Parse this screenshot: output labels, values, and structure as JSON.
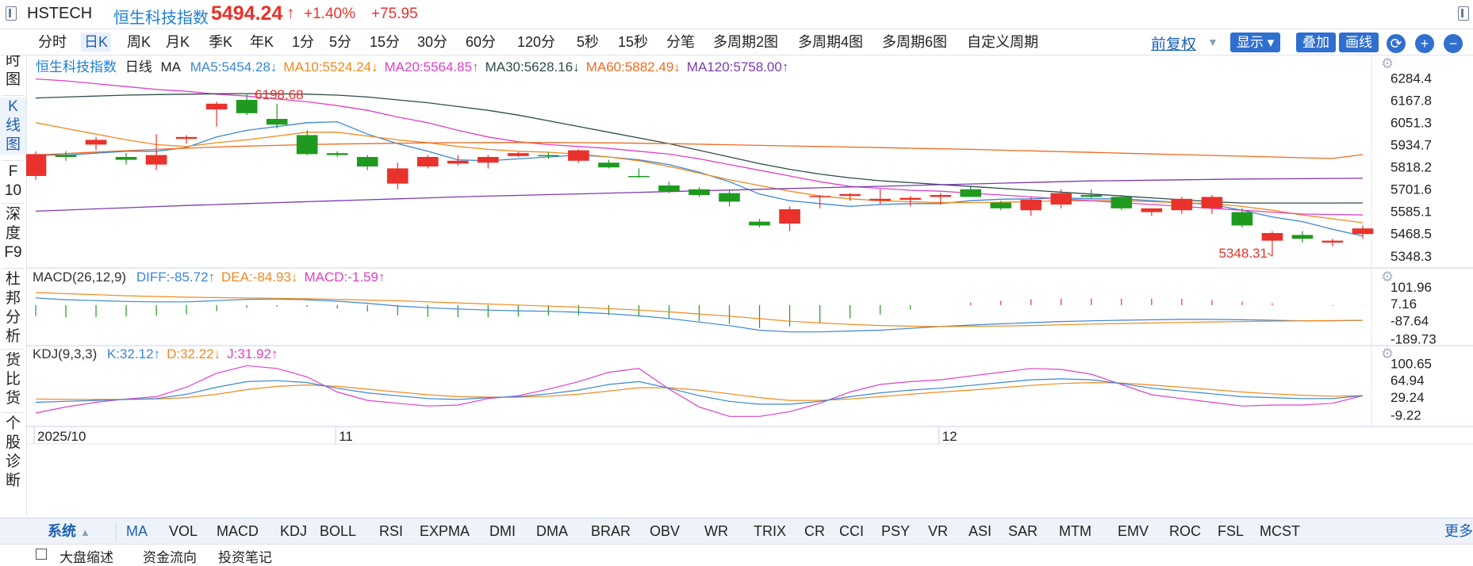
{
  "header": {
    "code": "HSTECH",
    "name": "恒生科技指数",
    "price": "5494.24",
    "price_arrow": "↑",
    "change_pct": "+1.40%",
    "change_abs": "+75.95"
  },
  "toolbar": {
    "periods": [
      "分时",
      "日K",
      "周K",
      "月K",
      "季K",
      "年K",
      "1分",
      "5分",
      "15分",
      "30分",
      "60分",
      "120分",
      "5秒",
      "15秒",
      "分笔",
      "多周期2图",
      "多周期4图",
      "多周期6图",
      "自定义周期"
    ],
    "active_period": "日K",
    "fq_label": "前复权",
    "display_label": "显示",
    "overlay_label": "叠加",
    "draw_label": "画线",
    "refresh_icon": "refresh-icon",
    "zoom_in_icon": "plus-icon",
    "zoom_out_icon": "minus-icon"
  },
  "sidebar": {
    "items": [
      {
        "label": "分时图",
        "lines": [
          "分",
          "时",
          "图"
        ]
      },
      {
        "label": "K线图",
        "lines": [
          "K",
          "线",
          "图"
        ]
      },
      {
        "label": "F10",
        "lines": [
          "F",
          "10"
        ]
      },
      {
        "label": "深度F9",
        "lines": [
          "深",
          "度",
          "F9"
        ]
      },
      {
        "label": "杜邦分析",
        "lines": [
          "杜",
          "邦",
          "分",
          "析"
        ]
      },
      {
        "label": "货比货",
        "lines": [
          "货",
          "比",
          "货"
        ]
      },
      {
        "label": "个股诊断",
        "lines": [
          "个",
          "股",
          "诊",
          "断"
        ]
      }
    ]
  },
  "main_legend": {
    "name": "恒生科技指数",
    "period": "日线",
    "indicator": "MA",
    "items": [
      {
        "text": "MA5:5454.28↓",
        "color": "#3a86d6"
      },
      {
        "text": "MA10:5524.24↓",
        "color": "#f08a1e"
      },
      {
        "text": "MA20:5564.85↑",
        "color": "#e040c8"
      },
      {
        "text": "MA30:5628.16↓",
        "color": "#2e4b4b"
      },
      {
        "text": "MA60:5882.49↓",
        "color": "#f06a1e"
      },
      {
        "text": "MA120:5758.00↑",
        "color": "#7c3ab5"
      }
    ]
  },
  "price_axis": [
    "6284.4",
    "6167.8",
    "6051.3",
    "5934.7",
    "5818.2",
    "5701.6",
    "5585.1",
    "5468.5",
    "5348.3"
  ],
  "annotations": {
    "high": "6198.68",
    "low": "5348.31"
  },
  "macd_legend": {
    "name": "MACD(26,12,9)",
    "items": [
      {
        "text": "DIFF:-85.72↑",
        "color": "#3a86d6"
      },
      {
        "text": "DEA:-84.93↓",
        "color": "#f08a1e"
      },
      {
        "text": "MACD:-1.59↑",
        "color": "#e040c8"
      }
    ]
  },
  "macd_axis": [
    "101.96",
    "7.16",
    "-87.64",
    "-189.73"
  ],
  "kdj_legend": {
    "name": "KDJ(9,3,3)",
    "items": [
      {
        "text": "K:32.12↑",
        "color": "#3a86d6"
      },
      {
        "text": "D:32.22↓",
        "color": "#f08a1e"
      },
      {
        "text": "J:31.92↑",
        "color": "#e040c8"
      }
    ]
  },
  "kdj_axis": [
    "100.65",
    "64.94",
    "29.24",
    "-9.22"
  ],
  "date_axis": [
    "2025/10",
    "11",
    "12"
  ],
  "bottom_tabs": {
    "system_label": "系统",
    "items": [
      "MA",
      "VOL",
      "MACD",
      "KDJ",
      "BOLL",
      "RSI",
      "EXPMA",
      "DMI",
      "DMA",
      "BRAR",
      "OBV",
      "WR",
      "TRIX",
      "CR",
      "CCI",
      "PSY",
      "VR",
      "ASI",
      "SAR",
      "MTM",
      "EMV",
      "ROC",
      "FSL",
      "MCST"
    ],
    "more_label": "更多"
  },
  "bottom2": {
    "items": [
      "大盘缩述",
      "资金流向",
      "投资笔记"
    ]
  },
  "colors": {
    "up": "#e8322b",
    "down": "#1f9a1f",
    "accent": "#1e5fb4"
  },
  "chart_data": {
    "type": "candlestick",
    "ohlc": [
      [
        5770,
        5900,
        5750,
        5885
      ],
      [
        5880,
        5900,
        5850,
        5870
      ],
      [
        5935,
        5975,
        5905,
        5960
      ],
      [
        5870,
        5890,
        5830,
        5855
      ],
      [
        5830,
        5990,
        5800,
        5880
      ],
      [
        5965,
        5985,
        5940,
        5975
      ],
      [
        6120,
        6160,
        6030,
        6150
      ],
      [
        6170,
        6198.68,
        6090,
        6100
      ],
      [
        6070,
        6150,
        6020,
        6040
      ],
      [
        5985,
        6010,
        5880,
        5885
      ],
      [
        5890,
        5900,
        5870,
        5880
      ],
      [
        5870,
        5880,
        5800,
        5820
      ],
      [
        5730,
        5840,
        5700,
        5810
      ],
      [
        5820,
        5880,
        5810,
        5870
      ],
      [
        5835,
        5880,
        5825,
        5850
      ],
      [
        5840,
        5880,
        5810,
        5870
      ],
      [
        5875,
        5895,
        5870,
        5890
      ],
      [
        5880,
        5895,
        5860,
        5875
      ],
      [
        5850,
        5910,
        5840,
        5905
      ],
      [
        5840,
        5855,
        5810,
        5815
      ],
      [
        5770,
        5810,
        5760,
        5765
      ],
      [
        5720,
        5740,
        5680,
        5690
      ],
      [
        5700,
        5710,
        5660,
        5670
      ],
      [
        5680,
        5700,
        5610,
        5635
      ],
      [
        5530,
        5545,
        5500,
        5510
      ],
      [
        5520,
        5610,
        5480,
        5595
      ],
      [
        5660,
        5670,
        5600,
        5665
      ],
      [
        5665,
        5680,
        5640,
        5675
      ],
      [
        5640,
        5700,
        5620,
        5650
      ],
      [
        5645,
        5665,
        5610,
        5655
      ],
      [
        5660,
        5680,
        5620,
        5670
      ],
      [
        5700,
        5720,
        5660,
        5660
      ],
      [
        5630,
        5640,
        5590,
        5600
      ],
      [
        5590,
        5660,
        5560,
        5645
      ],
      [
        5620,
        5700,
        5600,
        5680
      ],
      [
        5670,
        5700,
        5650,
        5660
      ],
      [
        5660,
        5670,
        5590,
        5600
      ],
      [
        5580,
        5600,
        5560,
        5600
      ],
      [
        5590,
        5660,
        5570,
        5650
      ],
      [
        5600,
        5670,
        5570,
        5660
      ],
      [
        5580,
        5600,
        5500,
        5510
      ],
      [
        5430,
        5480,
        5348.31,
        5470
      ],
      [
        5460,
        5480,
        5420,
        5440
      ],
      [
        5420,
        5440,
        5400,
        5430
      ],
      [
        5465,
        5510,
        5440,
        5494.24
      ]
    ],
    "ma": {
      "MA5": [
        5880,
        5880,
        5890,
        5900,
        5900,
        5920,
        5975,
        6010,
        6030,
        6050,
        6055,
        5990,
        5940,
        5900,
        5855,
        5850,
        5860,
        5870,
        5880,
        5870,
        5855,
        5830,
        5790,
        5740,
        5675,
        5640,
        5625,
        5610,
        5620,
        5625,
        5625,
        5640,
        5648,
        5650,
        5655,
        5650,
        5650,
        5640,
        5630,
        5620,
        5590,
        5555,
        5530,
        5490,
        5454.28
      ],
      "MA10": [
        6050,
        6020,
        5990,
        5960,
        5935,
        5925,
        5945,
        5960,
        5980,
        6000,
        6000,
        5980,
        5960,
        5945,
        5925,
        5910,
        5900,
        5895,
        5885,
        5870,
        5850,
        5820,
        5785,
        5750,
        5720,
        5690,
        5665,
        5650,
        5640,
        5635,
        5630,
        5630,
        5632,
        5635,
        5640,
        5640,
        5640,
        5635,
        5630,
        5625,
        5610,
        5590,
        5565,
        5545,
        5524.24
      ],
      "MA20": [
        6280,
        6270,
        6255,
        6240,
        6225,
        6215,
        6200,
        6190,
        6175,
        6160,
        6140,
        6115,
        6080,
        6050,
        6010,
        5975,
        5950,
        5935,
        5925,
        5915,
        5900,
        5885,
        5860,
        5830,
        5800,
        5770,
        5740,
        5715,
        5705,
        5695,
        5690,
        5680,
        5670,
        5660,
        5650,
        5640,
        5630,
        5620,
        5610,
        5600,
        5590,
        5580,
        5570,
        5568,
        5564.85
      ],
      "MA30": [
        6180,
        6185,
        6190,
        6195,
        6198,
        6200,
        6202,
        6203,
        6202,
        6200,
        6195,
        6185,
        6170,
        6155,
        6135,
        6115,
        6090,
        6060,
        6030,
        6000,
        5970,
        5940,
        5905,
        5870,
        5835,
        5805,
        5780,
        5760,
        5745,
        5735,
        5725,
        5715,
        5705,
        5695,
        5685,
        5675,
        5665,
        5655,
        5645,
        5635,
        5628,
        5628,
        5628,
        5628,
        5628.16
      ],
      "MA60": [
        5880,
        5888,
        5896,
        5903,
        5910,
        5916,
        5922,
        5927,
        5931,
        5935,
        5938,
        5940,
        5942,
        5944,
        5945,
        5946,
        5946,
        5946,
        5945,
        5944,
        5942,
        5940,
        5937,
        5934,
        5931,
        5928,
        5925,
        5922,
        5919,
        5916,
        5913,
        5910,
        5906,
        5902,
        5898,
        5894,
        5890,
        5886,
        5882,
        5878,
        5874,
        5870,
        5866,
        5862,
        5882.49
      ],
      "MA120": [
        5585,
        5591,
        5597,
        5603,
        5609,
        5615,
        5620,
        5625,
        5630,
        5635,
        5640,
        5645,
        5650,
        5655,
        5660,
        5664,
        5668,
        5672,
        5676,
        5680,
        5684,
        5688,
        5692,
        5696,
        5700,
        5704,
        5708,
        5712,
        5716,
        5720,
        5724,
        5728,
        5732,
        5736,
        5740,
        5744,
        5746,
        5748,
        5750,
        5752,
        5754,
        5755,
        5756,
        5757,
        5758.0
      ]
    },
    "macd": {
      "diff": [
        40,
        30,
        25,
        20,
        18,
        18,
        25,
        32,
        34,
        30,
        22,
        10,
        -5,
        -15,
        -22,
        -28,
        -32,
        -35,
        -40,
        -48,
        -60,
        -75,
        -95,
        -115,
        -140,
        -150,
        -150,
        -145,
        -140,
        -130,
        -120,
        -112,
        -105,
        -98,
        -92,
        -88,
        -85,
        -82,
        -80,
        -80,
        -82,
        -85,
        -88,
        -88,
        -85.72
      ],
      "dea": [
        70,
        64,
        58,
        52,
        48,
        44,
        42,
        40,
        38,
        35,
        32,
        28,
        24,
        18,
        12,
        6,
        0,
        -6,
        -12,
        -20,
        -28,
        -38,
        -50,
        -62,
        -76,
        -90,
        -100,
        -108,
        -114,
        -118,
        -120,
        -119,
        -117,
        -114,
        -110,
        -106,
        -103,
        -100,
        -97,
        -94,
        -92,
        -90,
        -88,
        -86,
        -84.93
      ],
      "hist": [
        -60,
        -68,
        -66,
        -64,
        -60,
        -52,
        -34,
        -16,
        -8,
        -10,
        -20,
        -36,
        -58,
        -66,
        -68,
        -68,
        -64,
        -58,
        -56,
        -56,
        -64,
        -74,
        -90,
        -106,
        -128,
        -120,
        -100,
        -74,
        -52,
        -24,
        0,
        14,
        24,
        32,
        36,
        36,
        36,
        36,
        34,
        28,
        20,
        10,
        0,
        -4,
        -1.59
      ]
    },
    "kdj": {
      "k": [
        18,
        20,
        22,
        24,
        26,
        35,
        50,
        62,
        64,
        60,
        48,
        38,
        32,
        26,
        24,
        28,
        30,
        36,
        44,
        56,
        62,
        48,
        32,
        20,
        14,
        14,
        20,
        30,
        38,
        44,
        48,
        54,
        60,
        66,
        68,
        66,
        58,
        48,
        42,
        36,
        30,
        28,
        26,
        26,
        32.12
      ],
      "d": [
        25,
        24,
        24,
        24,
        25,
        28,
        35,
        45,
        52,
        55,
        52,
        46,
        40,
        34,
        30,
        29,
        29,
        31,
        35,
        42,
        49,
        49,
        44,
        36,
        28,
        22,
        22,
        25,
        30,
        35,
        40,
        44,
        49,
        54,
        58,
        60,
        59,
        55,
        50,
        45,
        40,
        36,
        33,
        31,
        32.22
      ],
      "j": [
        -5,
        8,
        18,
        25,
        30,
        50,
        80,
        96,
        90,
        72,
        40,
        22,
        16,
        10,
        12,
        26,
        32,
        46,
        62,
        82,
        90,
        46,
        8,
        -12,
        -12,
        -2,
        16,
        40,
        56,
        62,
        66,
        74,
        82,
        90,
        88,
        78,
        56,
        34,
        26,
        18,
        10,
        12,
        12,
        16,
        31.92
      ]
    },
    "ylim_price": [
      5320,
      6320
    ],
    "ylim_macd": [
      -200,
      110
    ],
    "ylim_kdj": [
      -20,
      110
    ]
  }
}
